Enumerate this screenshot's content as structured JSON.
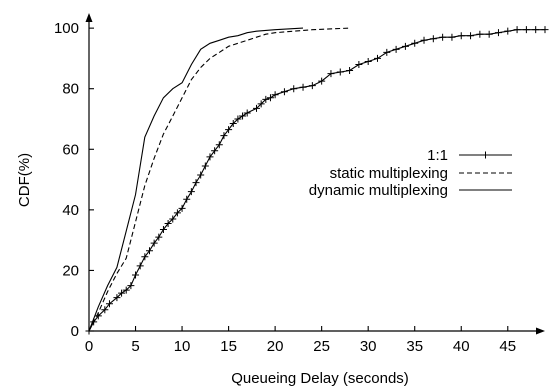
{
  "chart_data": {
    "type": "line",
    "title": "",
    "xlabel": "Queueing Delay (seconds)",
    "ylabel": "CDF(%)",
    "xlim": [
      0,
      49
    ],
    "ylim": [
      0,
      105
    ],
    "xticks": [
      0,
      5,
      10,
      15,
      20,
      25,
      30,
      35,
      40,
      45
    ],
    "yticks": [
      0,
      20,
      40,
      60,
      80,
      100
    ],
    "grid": false,
    "legend_position": "center-right",
    "series": [
      {
        "name": "1:1",
        "style": "solid-with-plus-markers",
        "points": [
          [
            0,
            0
          ],
          [
            0.5,
            3
          ],
          [
            1,
            5
          ],
          [
            1.7,
            7
          ],
          [
            2.2,
            9
          ],
          [
            3,
            11
          ],
          [
            3.5,
            12.5
          ],
          [
            4,
            13.5
          ],
          [
            4.5,
            15
          ],
          [
            5,
            18.5
          ],
          [
            5.5,
            21.5
          ],
          [
            6,
            24.5
          ],
          [
            6.5,
            26.5
          ],
          [
            7,
            29
          ],
          [
            7.5,
            31
          ],
          [
            8,
            33.5
          ],
          [
            8.5,
            35.5
          ],
          [
            9,
            37
          ],
          [
            9.5,
            39
          ],
          [
            10,
            40.5
          ],
          [
            10.5,
            43.5
          ],
          [
            11,
            46
          ],
          [
            11.5,
            49
          ],
          [
            12,
            51.5
          ],
          [
            12.5,
            54.5
          ],
          [
            13,
            57.5
          ],
          [
            13.5,
            59.5
          ],
          [
            14,
            61.5
          ],
          [
            14.5,
            64.5
          ],
          [
            15,
            66.5
          ],
          [
            15.5,
            68.5
          ],
          [
            16,
            70
          ],
          [
            16.5,
            71
          ],
          [
            17,
            72
          ],
          [
            18,
            73.5
          ],
          [
            18.5,
            75
          ],
          [
            19,
            76.5
          ],
          [
            19.5,
            77
          ],
          [
            20,
            78
          ],
          [
            21,
            79
          ],
          [
            22,
            80
          ],
          [
            23,
            80.5
          ],
          [
            24,
            81
          ],
          [
            25,
            82.5
          ],
          [
            26,
            85
          ],
          [
            27,
            85.5
          ],
          [
            28,
            86
          ],
          [
            29,
            88
          ],
          [
            30,
            89
          ],
          [
            31,
            90
          ],
          [
            32,
            92
          ],
          [
            33,
            93
          ],
          [
            34,
            94
          ],
          [
            35,
            95
          ],
          [
            36,
            96
          ],
          [
            37,
            96.5
          ],
          [
            38,
            97
          ],
          [
            39,
            97
          ],
          [
            40,
            97.5
          ],
          [
            41,
            97.5
          ],
          [
            42,
            98
          ],
          [
            43,
            98
          ],
          [
            44,
            98.5
          ],
          [
            45,
            99
          ],
          [
            46,
            99.5
          ],
          [
            47,
            99.5
          ],
          [
            48,
            99.5
          ],
          [
            49,
            99.5
          ]
        ]
      },
      {
        "name": "static multiplexing",
        "style": "dashed",
        "points": [
          [
            0,
            0
          ],
          [
            1,
            6
          ],
          [
            2,
            13
          ],
          [
            3,
            19
          ],
          [
            4,
            24
          ],
          [
            5,
            36
          ],
          [
            6,
            48
          ],
          [
            7,
            57
          ],
          [
            8,
            65
          ],
          [
            9,
            71
          ],
          [
            10,
            77
          ],
          [
            11,
            83
          ],
          [
            12,
            87
          ],
          [
            13,
            90
          ],
          [
            14,
            92
          ],
          [
            15,
            94
          ],
          [
            16,
            95
          ],
          [
            17,
            96
          ],
          [
            18,
            97
          ],
          [
            19,
            98
          ],
          [
            20,
            98.5
          ],
          [
            22,
            99
          ],
          [
            24,
            99.5
          ],
          [
            28,
            100
          ]
        ]
      },
      {
        "name": "dynamic multiplexing",
        "style": "solid",
        "points": [
          [
            0,
            0
          ],
          [
            1,
            8
          ],
          [
            2,
            15
          ],
          [
            3,
            21
          ],
          [
            4,
            33
          ],
          [
            5,
            45
          ],
          [
            6,
            64
          ],
          [
            7,
            71
          ],
          [
            8,
            77
          ],
          [
            9,
            80
          ],
          [
            10,
            82
          ],
          [
            11,
            88
          ],
          [
            12,
            93
          ],
          [
            13,
            95
          ],
          [
            14,
            96
          ],
          [
            15,
            97
          ],
          [
            16,
            97.5
          ],
          [
            17,
            98.5
          ],
          [
            18,
            99
          ],
          [
            20,
            99.5
          ],
          [
            23,
            100
          ]
        ]
      }
    ]
  }
}
